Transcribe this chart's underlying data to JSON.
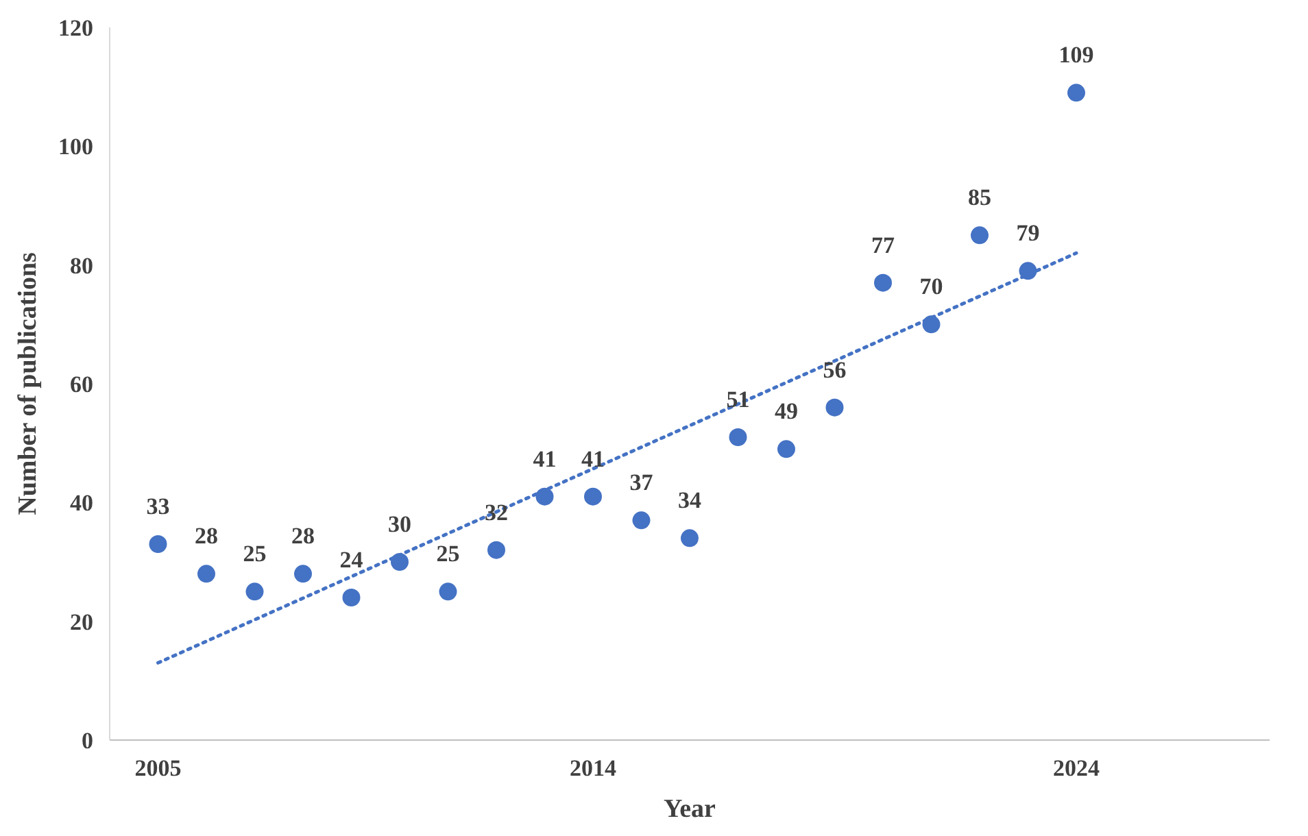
{
  "chart_data": {
    "type": "scatter",
    "xlabel": "Year",
    "ylabel": "Number of publications",
    "xlim": [
      2004,
      2028
    ],
    "xticks": [
      2005,
      2014,
      2024
    ],
    "ylim": [
      0,
      120
    ],
    "yticks": [
      0,
      20,
      40,
      60,
      80,
      100,
      120
    ],
    "grid": false,
    "marker": "circle",
    "series": [
      {
        "color": "#4472c4",
        "x": [
          2005,
          2006,
          2007,
          2008,
          2009,
          2010,
          2011,
          2012,
          2013,
          2014,
          2015,
          2016,
          2017,
          2018,
          2019,
          2020,
          2021,
          2022,
          2023,
          2024
        ],
        "values": [
          33,
          28,
          25,
          28,
          24,
          30,
          25,
          32,
          41,
          41,
          37,
          34,
          51,
          49,
          56,
          77,
          70,
          85,
          79,
          109
        ],
        "value_labels": [
          "33",
          "28",
          "25",
          "28",
          "24",
          "30",
          "25",
          "32",
          "41",
          "41",
          "37",
          "34",
          "51",
          "49",
          "56",
          "77",
          "70",
          "85",
          "79",
          "109"
        ]
      },
      {
        "type": "line",
        "color": "#4472c4",
        "line_style": "dotted",
        "marker": "none",
        "x": [
          2005,
          2024
        ],
        "values": [
          13,
          82
        ]
      }
    ]
  }
}
